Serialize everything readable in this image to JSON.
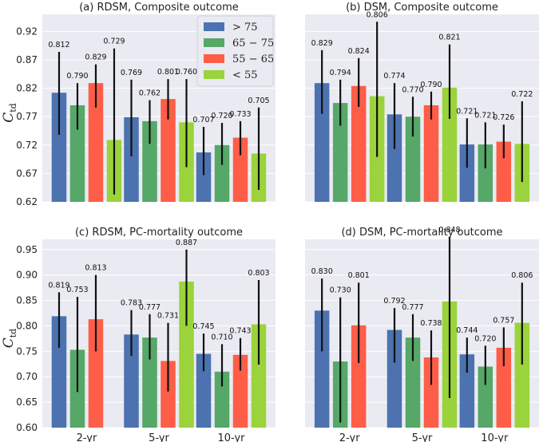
{
  "figure": {
    "ylabel": "C",
    "ylabel_sub": "td",
    "colors": [
      "#4c72b0",
      "#55a868",
      "#fe5d48",
      "#9ad33b"
    ],
    "legend_placement": "upper inside panel (a)"
  },
  "chart_data": [
    {
      "type": "bar",
      "title": "(a) RDSM, Composite outcome",
      "categories": [
        "2-yr",
        "5-yr",
        "10-yr"
      ],
      "ylim": [
        0.62,
        0.95
      ],
      "yticks": [
        "0.62",
        "0.67",
        "0.72",
        "0.77",
        "0.82",
        "0.87",
        "0.92"
      ],
      "series": [
        {
          "name": "> 75",
          "values": [
            0.812,
            0.769,
            0.707
          ],
          "err_low": [
            0.738,
            0.7,
            0.667
          ],
          "err_high": [
            0.884,
            0.835,
            0.752
          ]
        },
        {
          "name": "65 − 75",
          "values": [
            0.79,
            0.762,
            0.72
          ],
          "err_low": [
            0.747,
            0.722,
            0.685
          ],
          "err_high": [
            0.829,
            0.799,
            0.759
          ]
        },
        {
          "name": "55 − 65",
          "values": [
            0.829,
            0.801,
            0.733
          ],
          "err_low": [
            0.786,
            0.765,
            0.702
          ],
          "err_high": [
            0.862,
            0.836,
            0.762
          ]
        },
        {
          "name": "< 55",
          "values": [
            0.729,
            0.76,
            0.705
          ],
          "err_low": [
            0.633,
            0.681,
            0.641
          ],
          "err_high": [
            0.89,
            0.836,
            0.786
          ]
        }
      ],
      "labels": [
        [
          "0.812",
          "0.790",
          "0.829",
          "0.729"
        ],
        [
          "0.769",
          "0.762",
          "0.801",
          "0.760"
        ],
        [
          "0.707",
          "0.720",
          "0.733",
          "0.705"
        ]
      ]
    },
    {
      "type": "bar",
      "title": "(b) DSM, Composite outcome",
      "categories": [
        "2-yr",
        "5-yr",
        "10-yr"
      ],
      "ylim": [
        0.62,
        0.95
      ],
      "yticks": [],
      "series": [
        {
          "name": "> 75",
          "values": [
            0.829,
            0.774,
            0.721
          ],
          "err_low": [
            0.775,
            0.713,
            0.68
          ],
          "err_high": [
            0.887,
            0.829,
            0.767
          ]
        },
        {
          "name": "65 − 75",
          "values": [
            0.794,
            0.77,
            0.721
          ],
          "err_low": [
            0.754,
            0.735,
            0.679
          ],
          "err_high": [
            0.835,
            0.805,
            0.76
          ]
        },
        {
          "name": "55 − 65",
          "values": [
            0.824,
            0.79,
            0.726
          ],
          "err_low": [
            0.787,
            0.765,
            0.697
          ],
          "err_high": [
            0.873,
            0.814,
            0.756
          ]
        },
        {
          "name": "< 55",
          "values": [
            0.806,
            0.821,
            0.722
          ],
          "err_low": [
            0.699,
            0.766,
            0.655
          ],
          "err_high": [
            0.937,
            0.897,
            0.797
          ]
        }
      ],
      "labels": [
        [
          "0.829",
          "0.794",
          "0.824",
          "0.806"
        ],
        [
          "0.774",
          "0.770",
          "0.790",
          "0.821"
        ],
        [
          "0.721",
          "0.721",
          "0.726",
          "0.722"
        ]
      ]
    },
    {
      "type": "bar",
      "title": "(c) RDSM, PC-mortality outcome",
      "categories": [
        "2-yr",
        "5-yr",
        "10-yr"
      ],
      "ylim": [
        0.6,
        0.97
      ],
      "yticks": [
        "0.60",
        "0.65",
        "0.70",
        "0.75",
        "0.80",
        "0.85",
        "0.90",
        "0.95"
      ],
      "series": [
        {
          "name": "> 75",
          "values": [
            0.819,
            0.783,
            0.745
          ],
          "err_low": [
            0.757,
            0.741,
            0.711
          ],
          "err_high": [
            0.866,
            0.831,
            0.785
          ]
        },
        {
          "name": "65 − 75",
          "values": [
            0.753,
            0.777,
            0.71
          ],
          "err_low": [
            0.67,
            0.734,
            0.681
          ],
          "err_high": [
            0.857,
            0.823,
            0.764
          ]
        },
        {
          "name": "55 − 65",
          "values": [
            0.813,
            0.731,
            0.743
          ],
          "err_low": [
            0.75,
            0.671,
            0.712
          ],
          "err_high": [
            0.9,
            0.806,
            0.776
          ]
        },
        {
          "name": "< 55",
          "values": [
            null,
            0.887,
            0.803
          ],
          "err_low": [
            null,
            0.8,
            0.724
          ],
          "err_high": [
            null,
            0.95,
            0.89
          ]
        }
      ],
      "labels": [
        [
          "0.819",
          "0.753",
          "0.813",
          ""
        ],
        [
          "0.783",
          "0.777",
          "0.731",
          "0.887"
        ],
        [
          "0.745",
          "0.710",
          "0.743",
          "0.803"
        ]
      ]
    },
    {
      "type": "bar",
      "title": "(d) DSM, PC-mortality outcome",
      "categories": [
        "2-yr",
        "5-yr",
        "10-yr"
      ],
      "ylim": [
        0.6,
        0.97
      ],
      "yticks": [],
      "series": [
        {
          "name": "> 75",
          "values": [
            0.83,
            0.792,
            0.744
          ],
          "err_low": [
            0.75,
            0.728,
            0.708
          ],
          "err_high": [
            0.893,
            0.835,
            0.777
          ]
        },
        {
          "name": "65 − 75",
          "values": [
            0.73,
            0.777,
            0.72
          ],
          "err_low": [
            0.61,
            0.731,
            0.684
          ],
          "err_high": [
            0.856,
            0.823,
            0.761
          ]
        },
        {
          "name": "55 − 65",
          "values": [
            0.801,
            0.738,
            0.757
          ],
          "err_low": [
            0.727,
            0.684,
            0.721
          ],
          "err_high": [
            0.885,
            0.791,
            0.797
          ]
        },
        {
          "name": "< 55",
          "values": [
            null,
            0.848,
            0.806
          ],
          "err_low": [
            null,
            0.658,
            0.724
          ],
          "err_high": [
            null,
            0.975,
            0.885
          ]
        }
      ],
      "labels": [
        [
          "0.830",
          "0.730",
          "0.801",
          ""
        ],
        [
          "0.792",
          "0.777",
          "0.738",
          "0.848"
        ],
        [
          "0.744",
          "0.720",
          "0.757",
          "0.806"
        ]
      ]
    }
  ]
}
